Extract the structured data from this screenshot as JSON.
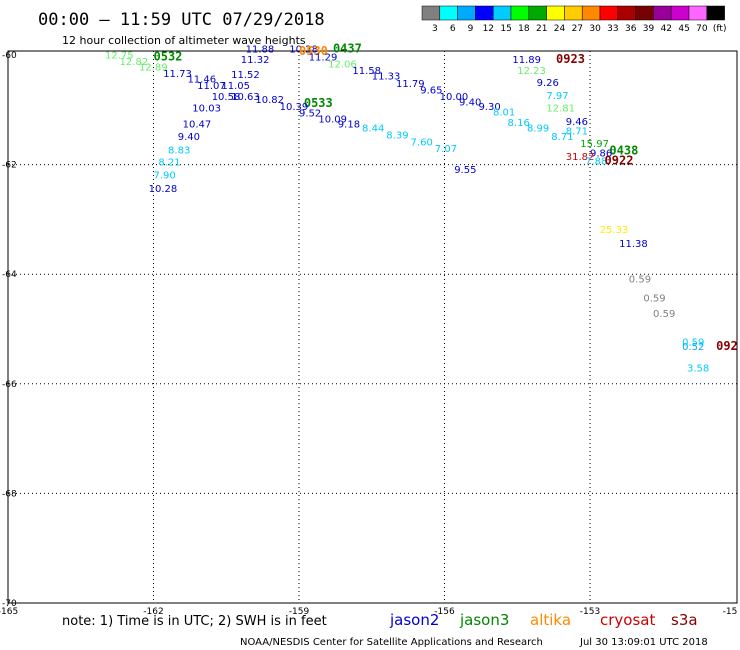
{
  "header": {
    "title": "00:00 – 11:59 UTC 07/29/2018",
    "subtitle": "12 hour collection of altimeter wave heights"
  },
  "scale": {
    "colors": [
      "#808080",
      "#00ffff",
      "#00aaff",
      "#0000ff",
      "#00ccff",
      "#00ff00",
      "#00aa00",
      "#ffff00",
      "#ffcc00",
      "#ff8800",
      "#ff0000",
      "#aa0000",
      "#770000",
      "#990099",
      "#cc00cc",
      "#ff66ff",
      "#000000"
    ],
    "labels": [
      "3",
      "6",
      "9",
      "12",
      "15",
      "18",
      "21",
      "24",
      "27",
      "30",
      "33",
      "36",
      "39",
      "42",
      "45",
      "70",
      "(ft)"
    ]
  },
  "axes": {
    "lat_labels": [
      "-60",
      "-62",
      "-64",
      "-66",
      "-68",
      "-70"
    ],
    "lon_labels": [
      "-165",
      "-162",
      "-159",
      "-156",
      "-153",
      "-15"
    ]
  },
  "legend": {
    "note": "note: 1) Time is in UTC; 2) SWH is in feet",
    "satellites": [
      {
        "name": "jason2",
        "color": "#0000cc"
      },
      {
        "name": "jason3",
        "color": "#008800"
      },
      {
        "name": "altika",
        "color": "#ff8800"
      },
      {
        "name": "cryosat",
        "color": "#cc0000"
      },
      {
        "name": "s3a",
        "color": "#880000"
      }
    ]
  },
  "footer": {
    "credit": "NOAA/NESDIS Center for Satellite Applications and Research",
    "timestamp": "Jul 30 13:09:01 UTC 2018"
  },
  "observations": [
    {
      "text": "12.75",
      "lon": -163.0,
      "lat": -60.06,
      "color": "#66ee66"
    },
    {
      "text": "12.82",
      "lon": -162.7,
      "lat": -60.18,
      "color": "#66ee66"
    },
    {
      "text": "12.89",
      "lon": -162.3,
      "lat": -60.28,
      "color": "#66ee66"
    },
    {
      "text": "11.73",
      "lon": -161.8,
      "lat": -60.4,
      "color": "#0000cc"
    },
    {
      "text": "11.46",
      "lon": -161.3,
      "lat": -60.5,
      "color": "#0000cc"
    },
    {
      "text": "11.07",
      "lon": -161.1,
      "lat": -60.62,
      "color": "#0000cc"
    },
    {
      "text": "11.05",
      "lon": -160.6,
      "lat": -60.62,
      "color": "#0000cc"
    },
    {
      "text": "10.58",
      "lon": -160.8,
      "lat": -60.82,
      "color": "#0000cc"
    },
    {
      "text": "10.63",
      "lon": -160.4,
      "lat": -60.82,
      "color": "#0000cc"
    },
    {
      "text": "10.82",
      "lon": -159.9,
      "lat": -60.88,
      "color": "#0000cc"
    },
    {
      "text": "10.03",
      "lon": -161.2,
      "lat": -61.03,
      "color": "#0000cc"
    },
    {
      "text": "10.47",
      "lon": -161.4,
      "lat": -61.32,
      "color": "#0000cc"
    },
    {
      "text": "9.40",
      "lon": -161.5,
      "lat": -61.55,
      "color": "#0000cc"
    },
    {
      "text": "8.83",
      "lon": -161.7,
      "lat": -61.8,
      "color": "#00ccff"
    },
    {
      "text": "8.21",
      "lon": -161.9,
      "lat": -62.02,
      "color": "#00ccff"
    },
    {
      "text": "7.90",
      "lon": -162.0,
      "lat": -62.25,
      "color": "#00ccff"
    },
    {
      "text": "10.28",
      "lon": -162.1,
      "lat": -62.5,
      "color": "#0000cc"
    },
    {
      "text": "11.88",
      "lon": -160.1,
      "lat": -59.95,
      "color": "#0000cc"
    },
    {
      "text": "11.32",
      "lon": -160.2,
      "lat": -60.15,
      "color": "#0000cc"
    },
    {
      "text": "11.52",
      "lon": -160.4,
      "lat": -60.42,
      "color": "#0000cc"
    },
    {
      "text": "0532",
      "lon": -162.0,
      "lat": -60.1,
      "color": "#008800",
      "bold": true
    },
    {
      "text": "0533",
      "lon": -158.9,
      "lat": -60.95,
      "color": "#008800",
      "bold": true
    },
    {
      "text": "10.39",
      "lon": -159.4,
      "lat": -61.0,
      "color": "#0000cc"
    },
    {
      "text": "9.52",
      "lon": -159.0,
      "lat": -61.12,
      "color": "#0000cc"
    },
    {
      "text": "10.09",
      "lon": -158.6,
      "lat": -61.23,
      "color": "#0000cc"
    },
    {
      "text": "9.18",
      "lon": -158.2,
      "lat": -61.32,
      "color": "#0000cc"
    },
    {
      "text": "8.44",
      "lon": -157.7,
      "lat": -61.4,
      "color": "#00ccff"
    },
    {
      "text": "8.39",
      "lon": -157.2,
      "lat": -61.52,
      "color": "#00ccff"
    },
    {
      "text": "7.60",
      "lon": -156.7,
      "lat": -61.65,
      "color": "#00ccff"
    },
    {
      "text": "7.07",
      "lon": -156.2,
      "lat": -61.77,
      "color": "#00ccff"
    },
    {
      "text": "9.55",
      "lon": -155.8,
      "lat": -62.15,
      "color": "#0000cc"
    },
    {
      "text": "10.28",
      "lon": -159.2,
      "lat": -59.95,
      "color": "#0000cc"
    },
    {
      "text": "0530",
      "lon": -159.0,
      "lat": -60.0,
      "color": "#ff8800",
      "bold": true
    },
    {
      "text": "0437",
      "lon": -158.3,
      "lat": -59.95,
      "color": "#008800",
      "bold": true
    },
    {
      "text": "11.29",
      "lon": -158.8,
      "lat": -60.1,
      "color": "#0000cc"
    },
    {
      "text": "12.06",
      "lon": -158.4,
      "lat": -60.23,
      "color": "#66ee66"
    },
    {
      "text": "11.58",
      "lon": -157.9,
      "lat": -60.35,
      "color": "#0000cc"
    },
    {
      "text": "11.33",
      "lon": -157.5,
      "lat": -60.45,
      "color": "#0000cc"
    },
    {
      "text": "11.79",
      "lon": -157.0,
      "lat": -60.58,
      "color": "#0000cc"
    },
    {
      "text": "9.65",
      "lon": -156.5,
      "lat": -60.7,
      "color": "#0000cc"
    },
    {
      "text": "10.00",
      "lon": -156.1,
      "lat": -60.82,
      "color": "#0000cc"
    },
    {
      "text": "9.40",
      "lon": -155.7,
      "lat": -60.92,
      "color": "#0000cc"
    },
    {
      "text": "9.30",
      "lon": -155.3,
      "lat": -61.0,
      "color": "#0000cc"
    },
    {
      "text": "8.01",
      "lon": -155.0,
      "lat": -61.1,
      "color": "#00ccff"
    },
    {
      "text": "8.16",
      "lon": -154.7,
      "lat": -61.3,
      "color": "#00ccff"
    },
    {
      "text": "8.99",
      "lon": -154.3,
      "lat": -61.4,
      "color": "#00ccff"
    },
    {
      "text": "11.89",
      "lon": -154.6,
      "lat": -60.15,
      "color": "#0000cc"
    },
    {
      "text": "0923",
      "lon": -153.7,
      "lat": -60.15,
      "color": "#880000",
      "bold": true
    },
    {
      "text": "12.23",
      "lon": -154.5,
      "lat": -60.35,
      "color": "#66ee66"
    },
    {
      "text": "9.26",
      "lon": -154.1,
      "lat": -60.57,
      "color": "#0000cc"
    },
    {
      "text": "7.97",
      "lon": -153.9,
      "lat": -60.8,
      "color": "#00ccff"
    },
    {
      "text": "12.81",
      "lon": -153.9,
      "lat": -61.03,
      "color": "#66ee66"
    },
    {
      "text": "9.46",
      "lon": -153.5,
      "lat": -61.28,
      "color": "#0000cc"
    },
    {
      "text": "8.71",
      "lon": -153.5,
      "lat": -61.45,
      "color": "#00ccff"
    },
    {
      "text": "8.71",
      "lon": -153.8,
      "lat": -61.55,
      "color": "#00ccff"
    },
    {
      "text": "15.97",
      "lon": -153.2,
      "lat": -61.68,
      "color": "#00aa00"
    },
    {
      "text": "0438",
      "lon": -152.6,
      "lat": -61.82,
      "color": "#008800",
      "bold": true
    },
    {
      "text": "9.86",
      "lon": -153.0,
      "lat": -61.85,
      "color": "#0000cc"
    },
    {
      "text": "31.82",
      "lon": -153.5,
      "lat": -61.92,
      "color": "#cc0000"
    },
    {
      "text": "7.88",
      "lon": -153.1,
      "lat": -62.0,
      "color": "#00ccff"
    },
    {
      "text": "0922",
      "lon": -152.7,
      "lat": -62.0,
      "color": "#880000",
      "bold": true
    },
    {
      "text": "25.33",
      "lon": -152.8,
      "lat": -63.25,
      "color": "#ffee00"
    },
    {
      "text": "11.38",
      "lon": -152.4,
      "lat": -63.5,
      "color": "#0000cc"
    },
    {
      "text": "0.59",
      "lon": -152.2,
      "lat": -64.15,
      "color": "#808080"
    },
    {
      "text": "0.59",
      "lon": -151.9,
      "lat": -64.5,
      "color": "#808080"
    },
    {
      "text": "0.59",
      "lon": -151.7,
      "lat": -64.78,
      "color": "#808080"
    },
    {
      "text": "0.59",
      "lon": -151.1,
      "lat": -65.3,
      "color": "#00ccff"
    },
    {
      "text": "0.52",
      "lon": -151.1,
      "lat": -65.38,
      "color": "#00aaff"
    },
    {
      "text": "092",
      "lon": -150.4,
      "lat": -65.38,
      "color": "#880000",
      "bold": true
    },
    {
      "text": "3.58",
      "lon": -151.0,
      "lat": -65.78,
      "color": "#00ccff"
    }
  ]
}
